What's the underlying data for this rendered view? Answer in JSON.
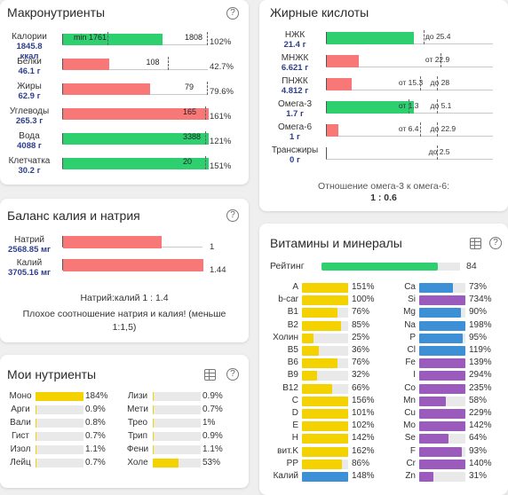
{
  "macro": {
    "title": "Макронутриенты",
    "help": "?",
    "rows": [
      {
        "name": "Калории",
        "amount": "1845.8",
        "unit": "ккал",
        "fill": 0.68,
        "color": "green",
        "min_label": "min 1761",
        "value_label": "1808",
        "pct": "102%"
      },
      {
        "name": "Белки",
        "amount": "46.1 г",
        "fill": 0.32,
        "color": "red",
        "value_label": "108",
        "pct": "42.7%"
      },
      {
        "name": "Жиры",
        "amount": "62.9 г",
        "fill": 0.6,
        "color": "red",
        "value_label": "79",
        "pct": "79.6%"
      },
      {
        "name": "Углеводы",
        "amount": "265.3 г",
        "fill": 1.0,
        "color": "red",
        "value_label": "165",
        "pct": "161%"
      },
      {
        "name": "Вода",
        "amount": "4088 г",
        "fill": 1.0,
        "color": "green",
        "value_label": "3388",
        "pct": "121%"
      },
      {
        "name": "Клетчатка",
        "amount": "30.2 г",
        "fill": 1.0,
        "color": "green",
        "value_label": "20",
        "pct": "151%"
      }
    ]
  },
  "fat": {
    "title": "Жирные кислоты",
    "rows": [
      {
        "name": "НЖК",
        "amount": "21.4 г",
        "fill": 0.52,
        "color": "green",
        "texts": [
          {
            "t": "до 25.4",
            "at": 0.59,
            "tick": 0.58
          }
        ]
      },
      {
        "name": "МНЖК",
        "amount": "6.621 г",
        "fill": 0.19,
        "color": "red",
        "texts": [
          {
            "t": "от 22.9",
            "at": 0.59,
            "tick": 0.68
          }
        ]
      },
      {
        "name": "ПНЖК",
        "amount": "4.812 г",
        "fill": 0.15,
        "color": "red",
        "texts": [
          {
            "t": "от 15.3",
            "at": 0.43,
            "tick": 0.56
          },
          {
            "t": "до 28",
            "at": 0.62,
            "tick": 0.66
          }
        ]
      },
      {
        "name": "Омега-3",
        "amount": "1.7 г",
        "fill": 0.52,
        "color": "green",
        "texts": [
          {
            "t": "от 1.3",
            "at": 0.43,
            "tick": 0.49
          },
          {
            "t": "до 5.1",
            "at": 0.62,
            "tick": 0.66
          }
        ]
      },
      {
        "name": "Омега-6",
        "amount": "1 г",
        "fill": 0.07,
        "color": "red",
        "texts": [
          {
            "t": "от 6.4",
            "at": 0.43,
            "tick": 0.56
          },
          {
            "t": "до 22.9",
            "at": 0.62,
            "tick": 0.66
          }
        ]
      },
      {
        "name": "Трансжиры",
        "amount": "0 г",
        "fill": 0,
        "color": "green",
        "texts": [
          {
            "t": "до 2.5",
            "at": 0.61,
            "tick": 0.66
          }
        ]
      }
    ],
    "ratio_label": "Отношение омега-3 к омега-6:",
    "ratio_value": "1 : 0.6"
  },
  "balance": {
    "title": "Баланс калия и натрия",
    "help": "?",
    "rows": [
      {
        "name": "Натрий",
        "amount": "2568.85 мг",
        "fill": 0.7,
        "value": "1"
      },
      {
        "name": "Калий",
        "amount": "3705.16 мг",
        "fill": 1.0,
        "value": "1.44"
      }
    ],
    "ratio": "Натрий:калий 1 : 1.4",
    "warning": "Плохое соотношение натрия и калия! (меньше 1:1,5)"
  },
  "my": {
    "title": "Мои нутриенты",
    "help": "?",
    "left": [
      {
        "name": "Моно",
        "pct": "184%",
        "fill": 1.0,
        "color": "yellow"
      },
      {
        "name": "Арги",
        "pct": "0.9%",
        "fill": 0.01,
        "color": "yellow"
      },
      {
        "name": "Вали",
        "pct": "0.8%",
        "fill": 0.01,
        "color": "yellow"
      },
      {
        "name": "Гист",
        "pct": "0.7%",
        "fill": 0.01,
        "color": "yellow"
      },
      {
        "name": "Изол",
        "pct": "1.1%",
        "fill": 0.01,
        "color": "yellow"
      },
      {
        "name": "Лейц",
        "pct": "0.7%",
        "fill": 0.01,
        "color": "yellow"
      }
    ],
    "right": [
      {
        "name": "Лизи",
        "pct": "0.9%",
        "fill": 0.01,
        "color": "yellow"
      },
      {
        "name": "Мети",
        "pct": "0.7%",
        "fill": 0.01,
        "color": "yellow"
      },
      {
        "name": "Трео",
        "pct": "1%",
        "fill": 0.01,
        "color": "yellow"
      },
      {
        "name": "Трип",
        "pct": "0.9%",
        "fill": 0.01,
        "color": "yellow"
      },
      {
        "name": "Фени",
        "pct": "1.1%",
        "fill": 0.01,
        "color": "yellow"
      },
      {
        "name": "Холе",
        "pct": "53%",
        "fill": 0.53,
        "color": "yellow"
      }
    ]
  },
  "vit": {
    "title": "Витамины и минералы",
    "help": "?",
    "rating_label": "Рейтинг",
    "rating_value": "84",
    "rating_fill": 0.84,
    "left": [
      {
        "name": "A",
        "pct": "151%",
        "fill": 1.0,
        "color": "yellow"
      },
      {
        "name": "b-car",
        "pct": "100%",
        "fill": 1.0,
        "color": "yellow"
      },
      {
        "name": "B1",
        "pct": "76%",
        "fill": 0.76,
        "color": "yellow"
      },
      {
        "name": "B2",
        "pct": "85%",
        "fill": 0.85,
        "color": "yellow"
      },
      {
        "name": "Холин",
        "pct": "25%",
        "fill": 0.25,
        "color": "yellow"
      },
      {
        "name": "B5",
        "pct": "36%",
        "fill": 0.36,
        "color": "yellow"
      },
      {
        "name": "B6",
        "pct": "76%",
        "fill": 0.76,
        "color": "yellow"
      },
      {
        "name": "B9",
        "pct": "32%",
        "fill": 0.32,
        "color": "yellow"
      },
      {
        "name": "B12",
        "pct": "66%",
        "fill": 0.66,
        "color": "yellow"
      },
      {
        "name": "C",
        "pct": "156%",
        "fill": 1.0,
        "color": "yellow"
      },
      {
        "name": "D",
        "pct": "101%",
        "fill": 1.0,
        "color": "yellow"
      },
      {
        "name": "E",
        "pct": "102%",
        "fill": 1.0,
        "color": "yellow"
      },
      {
        "name": "H",
        "pct": "142%",
        "fill": 1.0,
        "color": "yellow"
      },
      {
        "name": "вит.K",
        "pct": "162%",
        "fill": 1.0,
        "color": "yellow"
      },
      {
        "name": "PP",
        "pct": "86%",
        "fill": 0.86,
        "color": "yellow"
      },
      {
        "name": "Калий",
        "pct": "148%",
        "fill": 1.0,
        "color": "blue"
      }
    ],
    "right": [
      {
        "name": "Ca",
        "pct": "73%",
        "fill": 0.73,
        "color": "blue"
      },
      {
        "name": "Si",
        "pct": "734%",
        "fill": 1.0,
        "color": "purple"
      },
      {
        "name": "Mg",
        "pct": "90%",
        "fill": 0.9,
        "color": "blue"
      },
      {
        "name": "Na",
        "pct": "198%",
        "fill": 1.0,
        "color": "blue"
      },
      {
        "name": "P",
        "pct": "95%",
        "fill": 0.95,
        "color": "blue"
      },
      {
        "name": "Cl",
        "pct": "119%",
        "fill": 1.0,
        "color": "blue"
      },
      {
        "name": "Fe",
        "pct": "139%",
        "fill": 1.0,
        "color": "purple"
      },
      {
        "name": "I",
        "pct": "294%",
        "fill": 1.0,
        "color": "purple"
      },
      {
        "name": "Co",
        "pct": "235%",
        "fill": 1.0,
        "color": "purple"
      },
      {
        "name": "Mn",
        "pct": "58%",
        "fill": 0.58,
        "color": "purple"
      },
      {
        "name": "Cu",
        "pct": "229%",
        "fill": 1.0,
        "color": "purple"
      },
      {
        "name": "Mo",
        "pct": "142%",
        "fill": 1.0,
        "color": "purple"
      },
      {
        "name": "Se",
        "pct": "64%",
        "fill": 0.64,
        "color": "purple"
      },
      {
        "name": "F",
        "pct": "93%",
        "fill": 0.93,
        "color": "purple"
      },
      {
        "name": "Cr",
        "pct": "140%",
        "fill": 1.0,
        "color": "purple"
      },
      {
        "name": "Zn",
        "pct": "31%",
        "fill": 0.31,
        "color": "purple"
      }
    ]
  }
}
